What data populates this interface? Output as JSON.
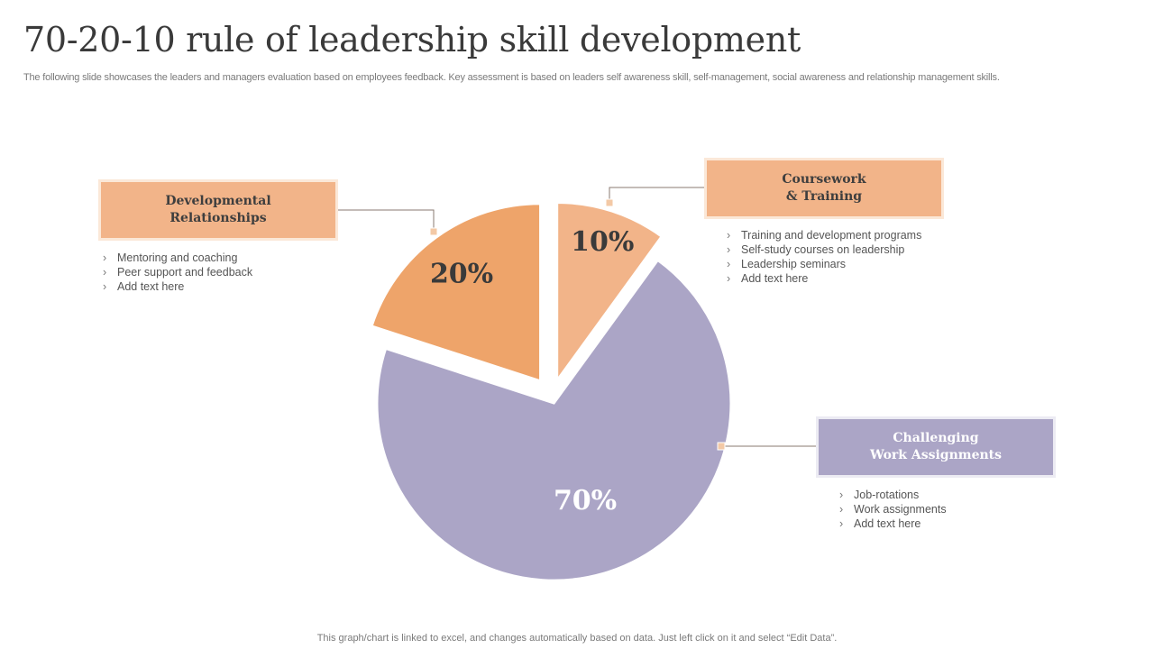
{
  "header": {
    "title": "70-20-10 rule of leadership skill development",
    "subtitle": "The following slide showcases the leaders and managers evaluation based on employees feedback. Key assessment is based on leaders self awareness skill, self-management, social awareness and relationship management skills."
  },
  "footer": {
    "note": "This graph/chart is linked to excel,  and changes automatically based on data. Just left click on it and select “Edit Data”."
  },
  "chart_data": {
    "type": "pie",
    "exploded": true,
    "slices": [
      {
        "label": "Coursework & Training",
        "value": 10,
        "display": "10%",
        "color": "#f2b489",
        "text_color": "#3a3a3a"
      },
      {
        "label": "Challenging Work Assignments",
        "value": 70,
        "display": "70%",
        "color": "#aba5c6",
        "text_color": "#ffffff"
      },
      {
        "label": "Developmental Relationships",
        "value": 20,
        "display": "20%",
        "color": "#eea46a",
        "text_color": "#3a3a3a"
      }
    ],
    "connector_color": "#8a7a70"
  },
  "callouts": {
    "developmental": {
      "title_line1": "Developmental",
      "title_line2": "Relationships",
      "items": [
        "Mentoring and coaching",
        "Peer support and feedback",
        "Add text here"
      ]
    },
    "coursework": {
      "title_line1": "Coursework",
      "title_line2": "& Training",
      "items": [
        "Training and development  programs",
        "Self-study courses on leadership",
        "Leadership seminars",
        "Add text here"
      ]
    },
    "challenging": {
      "title_line1": "Challenging",
      "title_line2": "Work Assignments",
      "items": [
        "Job-rotations",
        "Work assignments",
        "Add text here"
      ]
    }
  }
}
